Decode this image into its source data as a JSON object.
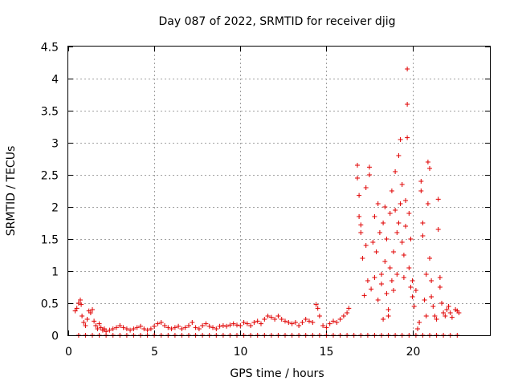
{
  "chart_data": {
    "type": "scatter",
    "title": "Day 087 of 2022, SRMTID for receiver djig",
    "xlabel": "GPS time / hours",
    "ylabel": "SRMTID / TECUs",
    "xlim": [
      0,
      24.5
    ],
    "ylim": [
      0,
      4.5
    ],
    "xticks": [
      0,
      5,
      10,
      15,
      20
    ],
    "xtick_labels": [
      "0",
      "5",
      "10",
      "15",
      "20"
    ],
    "yticks": [
      0,
      0.5,
      1,
      1.5,
      2,
      2.5,
      3,
      3.5,
      4,
      4.5
    ],
    "ytick_labels": [
      "0",
      "0.5",
      "1",
      "1.5",
      "2",
      "2.5",
      "3",
      "3.5",
      "4",
      "4.5"
    ],
    "grid": true,
    "marker": "+",
    "color": "#e00000",
    "series": [
      {
        "name": "SRMTID",
        "points": [
          [
            0.4,
            0.38
          ],
          [
            0.5,
            0.42
          ],
          [
            0.6,
            0.5
          ],
          [
            0.7,
            0.55
          ],
          [
            0.75,
            0.48
          ],
          [
            0.8,
            0.3
          ],
          [
            0.9,
            0.2
          ],
          [
            1.0,
            0.15
          ],
          [
            1.1,
            0.25
          ],
          [
            1.2,
            0.38
          ],
          [
            1.3,
            0.35
          ],
          [
            1.4,
            0.4
          ],
          [
            1.5,
            0.22
          ],
          [
            1.6,
            0.15
          ],
          [
            1.7,
            0.1
          ],
          [
            1.8,
            0.18
          ],
          [
            1.9,
            0.12
          ],
          [
            2.0,
            0.08
          ],
          [
            2.1,
            0.1
          ],
          [
            2.2,
            0.06
          ],
          [
            2.4,
            0.08
          ],
          [
            2.6,
            0.1
          ],
          [
            2.8,
            0.12
          ],
          [
            3.0,
            0.15
          ],
          [
            3.2,
            0.12
          ],
          [
            3.4,
            0.1
          ],
          [
            3.6,
            0.08
          ],
          [
            3.8,
            0.1
          ],
          [
            4.0,
            0.12
          ],
          [
            4.2,
            0.14
          ],
          [
            4.4,
            0.1
          ],
          [
            4.6,
            0.08
          ],
          [
            4.8,
            0.1
          ],
          [
            5.0,
            0.14
          ],
          [
            5.2,
            0.18
          ],
          [
            5.4,
            0.2
          ],
          [
            5.6,
            0.15
          ],
          [
            5.8,
            0.12
          ],
          [
            6.0,
            0.1
          ],
          [
            6.2,
            0.12
          ],
          [
            6.4,
            0.14
          ],
          [
            6.6,
            0.1
          ],
          [
            6.8,
            0.12
          ],
          [
            7.0,
            0.15
          ],
          [
            7.2,
            0.2
          ],
          [
            7.4,
            0.12
          ],
          [
            7.6,
            0.1
          ],
          [
            7.8,
            0.15
          ],
          [
            8.0,
            0.18
          ],
          [
            8.2,
            0.14
          ],
          [
            8.4,
            0.12
          ],
          [
            8.6,
            0.1
          ],
          [
            8.8,
            0.14
          ],
          [
            9.0,
            0.15
          ],
          [
            9.2,
            0.14
          ],
          [
            9.4,
            0.16
          ],
          [
            9.6,
            0.18
          ],
          [
            9.8,
            0.16
          ],
          [
            10.0,
            0.15
          ],
          [
            10.2,
            0.2
          ],
          [
            10.4,
            0.18
          ],
          [
            10.6,
            0.15
          ],
          [
            10.8,
            0.2
          ],
          [
            11.0,
            0.22
          ],
          [
            11.2,
            0.18
          ],
          [
            11.4,
            0.25
          ],
          [
            11.6,
            0.3
          ],
          [
            11.8,
            0.28
          ],
          [
            12.0,
            0.25
          ],
          [
            12.2,
            0.3
          ],
          [
            12.4,
            0.25
          ],
          [
            12.6,
            0.22
          ],
          [
            12.8,
            0.2
          ],
          [
            13.0,
            0.18
          ],
          [
            13.2,
            0.2
          ],
          [
            13.4,
            0.15
          ],
          [
            13.6,
            0.2
          ],
          [
            13.8,
            0.25
          ],
          [
            14.0,
            0.22
          ],
          [
            14.2,
            0.2
          ],
          [
            14.4,
            0.48
          ],
          [
            14.5,
            0.42
          ],
          [
            14.6,
            0.3
          ],
          [
            14.8,
            0.15
          ],
          [
            15.0,
            0.12
          ],
          [
            15.2,
            0.18
          ],
          [
            15.4,
            0.22
          ],
          [
            15.6,
            0.2
          ],
          [
            15.8,
            0.25
          ],
          [
            16.0,
            0.3
          ],
          [
            16.2,
            0.35
          ],
          [
            16.3,
            0.42
          ],
          [
            16.8,
            2.65
          ],
          [
            16.8,
            2.45
          ],
          [
            16.9,
            2.18
          ],
          [
            16.9,
            1.85
          ],
          [
            17.0,
            1.72
          ],
          [
            17.0,
            1.6
          ],
          [
            17.1,
            1.2
          ],
          [
            17.2,
            0.62
          ],
          [
            17.3,
            1.4
          ],
          [
            17.3,
            2.3
          ],
          [
            17.4,
            0.85
          ],
          [
            17.5,
            2.5
          ],
          [
            17.5,
            2.62
          ],
          [
            17.6,
            0.72
          ],
          [
            17.7,
            1.45
          ],
          [
            17.8,
            0.9
          ],
          [
            17.8,
            1.85
          ],
          [
            17.9,
            1.3
          ],
          [
            18.0,
            0.55
          ],
          [
            18.0,
            2.05
          ],
          [
            18.1,
            1.6
          ],
          [
            18.2,
            0.95
          ],
          [
            18.2,
            0.8
          ],
          [
            18.3,
            1.75
          ],
          [
            18.3,
            0.25
          ],
          [
            18.4,
            1.15
          ],
          [
            18.4,
            2.0
          ],
          [
            18.5,
            0.65
          ],
          [
            18.5,
            1.5
          ],
          [
            18.6,
            0.3
          ],
          [
            18.6,
            0.4
          ],
          [
            18.7,
            1.9
          ],
          [
            18.7,
            1.05
          ],
          [
            18.8,
            2.25
          ],
          [
            18.8,
            0.85
          ],
          [
            18.9,
            1.3
          ],
          [
            18.9,
            0.7
          ],
          [
            19.0,
            1.95
          ],
          [
            19.0,
            2.55
          ],
          [
            19.1,
            1.6
          ],
          [
            19.1,
            0.95
          ],
          [
            19.2,
            2.8
          ],
          [
            19.2,
            1.75
          ],
          [
            19.3,
            3.05
          ],
          [
            19.3,
            2.05
          ],
          [
            19.4,
            1.45
          ],
          [
            19.4,
            2.35
          ],
          [
            19.5,
            1.25
          ],
          [
            19.5,
            0.9
          ],
          [
            19.6,
            1.7
          ],
          [
            19.6,
            2.1
          ],
          [
            19.7,
            4.15
          ],
          [
            19.7,
            3.6
          ],
          [
            19.7,
            3.08
          ],
          [
            19.8,
            1.9
          ],
          [
            19.8,
            1.05
          ],
          [
            19.9,
            0.75
          ],
          [
            19.9,
            1.5
          ],
          [
            20.0,
            0.6
          ],
          [
            20.0,
            0.85
          ],
          [
            20.1,
            0.45
          ],
          [
            20.2,
            0.7
          ],
          [
            20.3,
            0.1
          ],
          [
            20.4,
            0.2
          ],
          [
            20.5,
            2.4
          ],
          [
            20.5,
            2.25
          ],
          [
            20.6,
            1.75
          ],
          [
            20.6,
            1.55
          ],
          [
            20.7,
            0.55
          ],
          [
            20.8,
            0.95
          ],
          [
            20.8,
            0.3
          ],
          [
            20.9,
            2.05
          ],
          [
            20.9,
            2.7
          ],
          [
            21.0,
            2.6
          ],
          [
            21.0,
            1.2
          ],
          [
            21.1,
            0.85
          ],
          [
            21.1,
            0.6
          ],
          [
            21.2,
            0.45
          ],
          [
            21.3,
            0.3
          ],
          [
            21.4,
            0.25
          ],
          [
            21.5,
            2.12
          ],
          [
            21.5,
            1.65
          ],
          [
            21.6,
            0.9
          ],
          [
            21.6,
            0.75
          ],
          [
            21.7,
            0.5
          ],
          [
            21.8,
            0.35
          ],
          [
            21.9,
            0.3
          ],
          [
            22.0,
            0.4
          ],
          [
            22.1,
            0.45
          ],
          [
            22.2,
            0.35
          ],
          [
            22.3,
            0.28
          ],
          [
            22.5,
            0.4
          ],
          [
            22.6,
            0.38
          ],
          [
            22.7,
            0.35
          ],
          [
            0.6,
            0
          ],
          [
            1.0,
            0
          ],
          [
            1.4,
            0
          ],
          [
            1.8,
            0
          ],
          [
            2.2,
            0
          ],
          [
            2.6,
            0
          ],
          [
            3.0,
            0
          ],
          [
            3.4,
            0
          ],
          [
            3.8,
            0
          ],
          [
            4.2,
            0
          ],
          [
            4.6,
            0
          ],
          [
            5.0,
            0
          ],
          [
            5.4,
            0
          ],
          [
            5.8,
            0
          ],
          [
            6.2,
            0
          ],
          [
            6.6,
            0
          ],
          [
            7.0,
            0
          ],
          [
            7.4,
            0
          ],
          [
            7.8,
            0
          ],
          [
            8.2,
            0
          ],
          [
            8.6,
            0
          ],
          [
            9.0,
            0
          ],
          [
            9.4,
            0
          ],
          [
            9.8,
            0
          ],
          [
            10.2,
            0
          ],
          [
            10.6,
            0
          ],
          [
            11.0,
            0
          ],
          [
            11.4,
            0
          ],
          [
            11.8,
            0
          ],
          [
            12.2,
            0
          ],
          [
            12.6,
            0
          ],
          [
            13.0,
            0
          ],
          [
            13.4,
            0
          ],
          [
            13.8,
            0
          ],
          [
            14.2,
            0
          ],
          [
            14.6,
            0
          ],
          [
            15.0,
            0
          ],
          [
            15.4,
            0
          ],
          [
            15.8,
            0
          ],
          [
            16.2,
            0
          ],
          [
            16.6,
            0
          ],
          [
            17.0,
            0
          ],
          [
            17.4,
            0
          ],
          [
            17.8,
            0
          ],
          [
            18.2,
            0
          ],
          [
            18.6,
            0
          ],
          [
            19.0,
            0
          ],
          [
            19.4,
            0
          ],
          [
            19.8,
            0
          ],
          [
            20.2,
            0
          ],
          [
            20.6,
            0
          ],
          [
            21.0,
            0
          ],
          [
            21.4,
            0
          ],
          [
            21.8,
            0
          ],
          [
            22.2,
            0
          ],
          [
            22.6,
            0
          ]
        ]
      }
    ]
  }
}
